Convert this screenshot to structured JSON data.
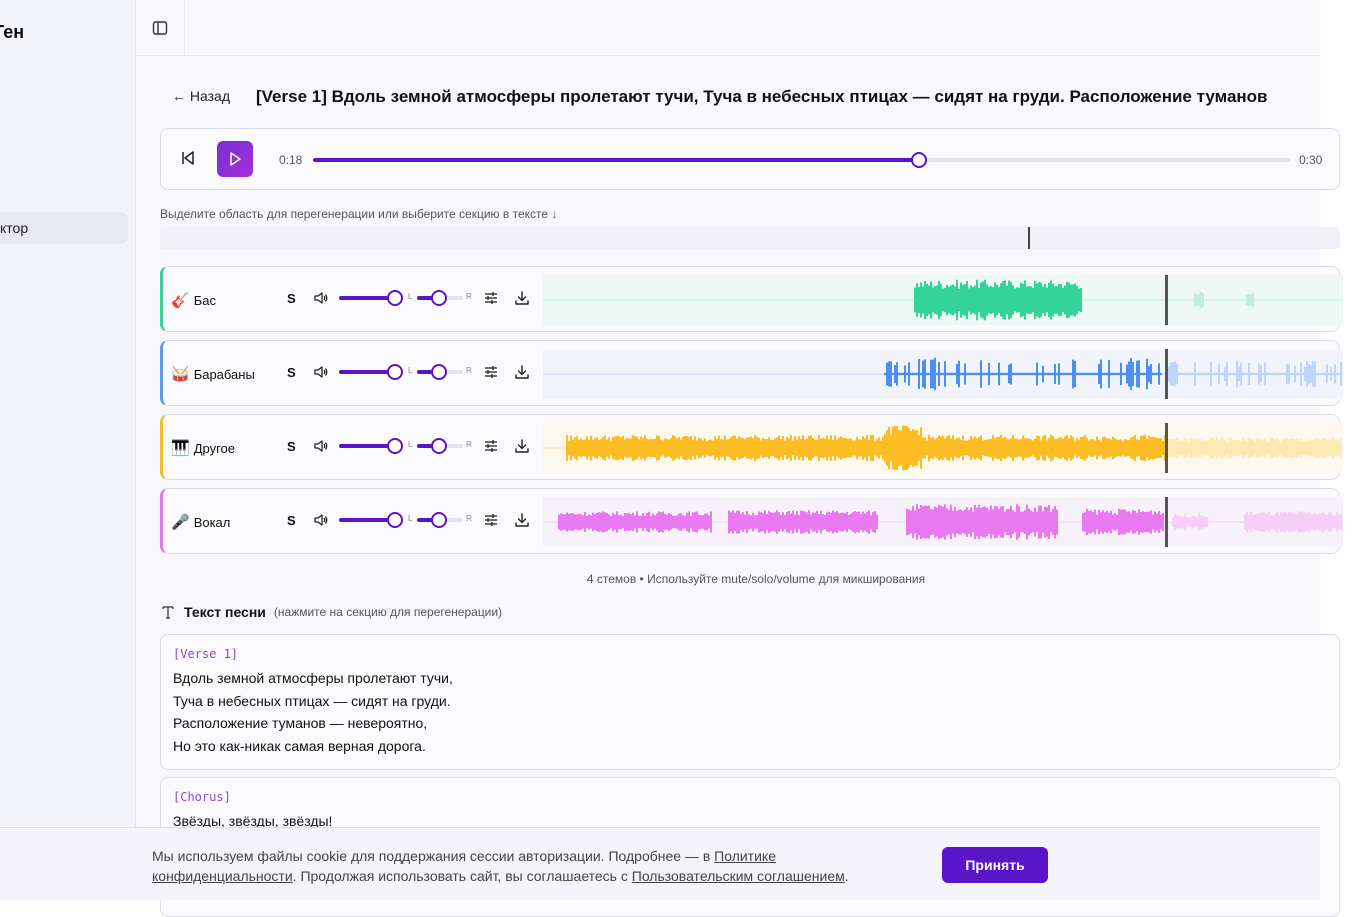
{
  "sidebar": {
    "brand": "Ген",
    "items": [
      {
        "label": "ктор",
        "active": true
      }
    ]
  },
  "header": {
    "toggle_icon": "sidebar-toggle-icon"
  },
  "page": {
    "back_label": "← Назад",
    "title": "[Verse 1] Вдоль земной атмосферы пролетают тучи, Туча в небесных птицах — сидят на груди. Расположение туманов"
  },
  "player": {
    "current_time": "0:18",
    "total_time": "0:30",
    "progress": 0.62,
    "accent": "#5b15c9"
  },
  "region": {
    "hint": "Выделите область для перегенерации или выберите секцию в тексте ↓",
    "marker_fraction": 0.736
  },
  "stems": [
    {
      "emoji": "🎸",
      "name": "Бас",
      "solo": "S",
      "pan_left": "L",
      "pan_right": "R",
      "volume": 0.9,
      "pan": 0.5,
      "color": "#33d39a",
      "light": "#bfeedc",
      "border": "#3fcf96",
      "bg": "#eef8f4"
    },
    {
      "emoji": "🥁",
      "name": "Барабаны",
      "solo": "S",
      "pan_left": "L",
      "pan_right": "R",
      "volume": 0.9,
      "pan": 0.5,
      "color": "#4d8ff0",
      "light": "#bfd6fa",
      "border": "#5c9ce6",
      "bg": "#f1f4fb"
    },
    {
      "emoji": "🎹",
      "name": "Другое",
      "solo": "S",
      "pan_left": "L",
      "pan_right": "R",
      "volume": 0.9,
      "pan": 0.5,
      "color": "#fbbd23",
      "light": "#fde9b4",
      "border": "#f3bd2b",
      "bg": "#fbf8ef"
    },
    {
      "emoji": "🎤",
      "name": "Вокал",
      "solo": "S",
      "pan_left": "L",
      "pan_right": "R",
      "volume": 0.9,
      "pan": 0.5,
      "color": "#e879f0",
      "light": "#f6cff8",
      "border": "#e07ae4",
      "bg": "#f7f1f9"
    }
  ],
  "stems_caption": "4 стемов • Используйте mute/solo/volume для микширования",
  "lyrics": {
    "title": "Текст песни",
    "subtitle": "(нажмите на секцию для перегенерации)",
    "sections": [
      {
        "tag": "[Verse 1]",
        "lines": [
          "Вдоль земной атмосферы пролетают тучи,",
          "Туча в небесных птицах — сидят на груди.",
          "Расположение туманов — невероятно,",
          "Но это как-никак самая верная дорога."
        ]
      },
      {
        "tag": "[Chorus]",
        "lines": [
          "Звёзды, звёзды, звёзды!"
        ]
      }
    ]
  },
  "cookie": {
    "text1": "Мы используем файлы cookie для поддержания сессии авторизации. Подробнее — в ",
    "link1": "Политике конфиденциальности",
    "text2": ". Продолжая использовать сайт, вы соглашаетесь с ",
    "link2": "Пользовательским соглашением",
    "text3": ".",
    "accept_label": "Принять"
  }
}
